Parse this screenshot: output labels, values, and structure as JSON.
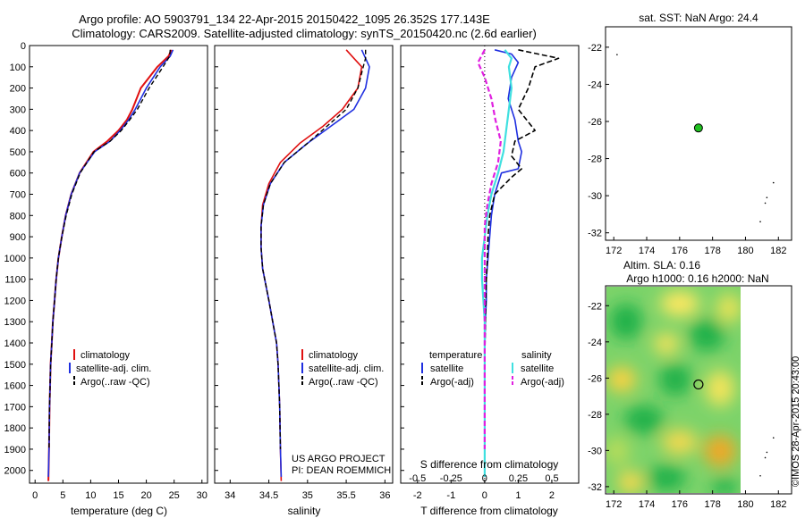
{
  "header": {
    "line1": "Argo profile: AO 5903791_134 22-Apr-2015 20150422_1095 26.352S 177.143E",
    "line2": "Climatology: CARS2009. Satellite-adjusted climatology: synTS_20150420.nc (2.6d earlier)"
  },
  "credit": {
    "project": "US ARGO PROJECT",
    "pi": "PI: DEAN ROEMMICH",
    "imos": "©IMOS 28-Apr-2015 20:43:00"
  },
  "colors": {
    "climatology": "#e01010",
    "satellite": "#1f2fe0",
    "argo": "#000000",
    "salinity_sat": "#40e0e0",
    "salinity_argo": "#e020e0",
    "marker": "#20c020"
  },
  "panels": {
    "temperature": {
      "xlabel": "temperature (deg C)",
      "xlim": [
        -1,
        31
      ],
      "xticks": [
        0,
        5,
        10,
        15,
        20,
        25,
        30
      ],
      "legend": [
        "climatology",
        "satellite-adj. clim.",
        "Argo(..raw -QC)"
      ]
    },
    "salinity": {
      "xlabel": "salinity",
      "xlim": [
        33.8,
        36.1
      ],
      "xticks": [
        34,
        34.5,
        35,
        35.5,
        36
      ],
      "legend": [
        "climatology",
        "satellite-adj. clim.",
        "Argo(..raw -QC)"
      ]
    },
    "difference": {
      "xlabel_bottom": "T difference from climatology",
      "xlabel_top": "S difference from climatology",
      "xlim": [
        -2.5,
        2.8
      ],
      "xticks_bottom": [
        -2,
        -1,
        0,
        1,
        2
      ],
      "xticks_top": [
        -0.5,
        -0.25,
        0,
        0.25,
        0.5
      ],
      "legend_temp_title": "temperature",
      "legend_sal_title": "salinity",
      "legend_temp": [
        "satellite",
        "Argo(-adj)"
      ],
      "legend_sal": [
        "satellite",
        "Argo(-adj)"
      ]
    },
    "map_sst": {
      "title": "sat. SST: NaN Argo: 24.4",
      "xlim": [
        171.5,
        182.8
      ],
      "ylim": [
        -32.4,
        -20.9
      ],
      "xticks": [
        172,
        174,
        176,
        178,
        180,
        182
      ],
      "yticks": [
        -22,
        -24,
        -26,
        -28,
        -30,
        -32
      ],
      "profile_lon": 177.143,
      "profile_lat": -26.352
    },
    "map_sla": {
      "title1": "Altim. SLA: 0.16",
      "title2": "Argo h1000: 0.16 h2000: NaN",
      "xlim": [
        171.5,
        182.8
      ],
      "ylim": [
        -32.4,
        -20.9
      ],
      "xticks": [
        172,
        174,
        176,
        178,
        180,
        182
      ],
      "yticks": [
        -22,
        -24,
        -26,
        -28,
        -30,
        -32
      ],
      "profile_lon": 177.143,
      "profile_lat": -26.352
    }
  },
  "chart_data": [
    {
      "type": "line",
      "name": "temperature-profile",
      "xlabel": "temperature (deg C)",
      "ylabel": "",
      "ylim": [
        2060,
        0
      ],
      "yticks": [
        0,
        100,
        200,
        300,
        400,
        500,
        600,
        700,
        800,
        900,
        1000,
        1100,
        1200,
        1300,
        1400,
        1500,
        1600,
        1700,
        1800,
        1900,
        2000
      ],
      "series": [
        {
          "name": "climatology",
          "x": [
            24.5,
            24.0,
            22.0,
            19.0,
            17.5,
            16.5,
            15.0,
            13.0,
            10.5,
            8.0,
            6.5,
            5.5,
            4.8,
            4.2,
            3.8,
            3.5,
            3.2,
            3.0,
            2.8,
            2.6,
            2.5,
            2.4
          ],
          "y": [
            20,
            50,
            100,
            200,
            300,
            350,
            400,
            450,
            500,
            600,
            700,
            800,
            900,
            1000,
            1100,
            1200,
            1300,
            1400,
            1500,
            1700,
            1900,
            2050
          ]
        },
        {
          "name": "satellite-adj. clim.",
          "x": [
            24.8,
            24.3,
            22.5,
            20.0,
            18.0,
            16.8,
            15.3,
            13.5,
            10.7,
            8.0,
            6.5,
            5.5,
            4.8,
            4.2,
            3.8,
            3.5,
            3.2,
            3.0,
            2.8,
            2.6,
            2.5,
            2.4
          ],
          "y": [
            20,
            50,
            100,
            200,
            300,
            350,
            400,
            450,
            500,
            600,
            700,
            800,
            900,
            1000,
            1100,
            1200,
            1300,
            1400,
            1500,
            1700,
            1900,
            2030
          ]
        },
        {
          "name": "Argo(..raw -QC)",
          "x": [
            24.3,
            24.2,
            23.0,
            20.5,
            18.4,
            17.0,
            15.5,
            13.5,
            10.6,
            8.1,
            6.6,
            5.6,
            4.8,
            4.2,
            3.8,
            3.5,
            3.2,
            3.0,
            2.8,
            2.6,
            2.5
          ],
          "y": [
            20,
            50,
            100,
            200,
            300,
            350,
            400,
            450,
            500,
            600,
            700,
            800,
            900,
            1000,
            1100,
            1200,
            1300,
            1400,
            1500,
            1700,
            1900
          ]
        }
      ]
    },
    {
      "type": "line",
      "name": "salinity-profile",
      "xlabel": "salinity",
      "ylim": [
        2060,
        0
      ],
      "series": [
        {
          "name": "climatology",
          "x": [
            35.5,
            35.6,
            35.7,
            35.65,
            35.45,
            35.2,
            34.9,
            34.65,
            34.5,
            34.42,
            34.4,
            34.4,
            34.42,
            34.5,
            34.55,
            34.6,
            34.62,
            34.63,
            34.64,
            34.65,
            34.66
          ],
          "y": [
            20,
            60,
            100,
            200,
            300,
            380,
            460,
            550,
            650,
            750,
            850,
            950,
            1050,
            1200,
            1300,
            1400,
            1500,
            1600,
            1700,
            1900,
            2050
          ]
        },
        {
          "name": "satellite-adj. clim.",
          "x": [
            35.7,
            35.75,
            35.8,
            35.75,
            35.6,
            35.3,
            35.0,
            34.7,
            34.52,
            34.43,
            34.4,
            34.4,
            34.42,
            34.5,
            34.55,
            34.6,
            34.62,
            34.63,
            34.64,
            34.65,
            34.66
          ],
          "y": [
            20,
            60,
            100,
            200,
            300,
            380,
            460,
            550,
            650,
            750,
            850,
            950,
            1050,
            1200,
            1300,
            1400,
            1500,
            1600,
            1700,
            1900,
            2030
          ]
        },
        {
          "name": "Argo(..raw -QC)",
          "x": [
            35.75,
            35.75,
            35.72,
            35.65,
            35.5,
            35.25,
            35.0,
            34.7,
            34.52,
            34.43,
            34.4,
            34.4,
            34.42,
            34.5,
            34.55,
            34.6,
            34.62,
            34.63,
            34.64,
            34.65
          ],
          "y": [
            20,
            60,
            100,
            200,
            300,
            380,
            460,
            550,
            650,
            750,
            850,
            950,
            1050,
            1200,
            1300,
            1400,
            1500,
            1600,
            1700,
            1900
          ]
        }
      ]
    },
    {
      "type": "line",
      "name": "difference-profile",
      "xlabel": "T difference from climatology",
      "ylim": [
        2060,
        0
      ],
      "series": [
        {
          "name": "temperature satellite",
          "axis": "T",
          "x": [
            0.3,
            0.8,
            1.0,
            0.8,
            0.7,
            0.9,
            1.0,
            1.1,
            1.0,
            0.5,
            0.3,
            0.2,
            0.15,
            0.1,
            0.05,
            0.05,
            0.02,
            0.0,
            0.0,
            0.0,
            0.0
          ],
          "y": [
            20,
            40,
            80,
            150,
            250,
            350,
            450,
            500,
            580,
            600,
            700,
            800,
            900,
            1000,
            1100,
            1200,
            1300,
            1500,
            1700,
            1900,
            2030
          ]
        },
        {
          "name": "temperature Argo(-adj)",
          "axis": "T",
          "x": [
            1.0,
            2.2,
            1.5,
            1.3,
            1.0,
            1.5,
            0.9,
            0.8,
            1.1,
            0.8,
            0.3,
            0.15,
            0.1,
            0.08,
            0.05,
            0.03,
            0.02,
            0.0,
            0.0,
            0.0
          ],
          "y": [
            20,
            60,
            100,
            200,
            300,
            400,
            450,
            520,
            580,
            620,
            700,
            800,
            900,
            1000,
            1100,
            1200,
            1300,
            1500,
            1700,
            1900
          ]
        },
        {
          "name": "salinity satellite",
          "axis": "S",
          "x": [
            0.15,
            0.2,
            0.18,
            0.2,
            0.18,
            0.16,
            0.14,
            0.1,
            0.05,
            0.02,
            0.0,
            -0.02,
            -0.02,
            0.0,
            0.0,
            0.0,
            0.0,
            0.0
          ],
          "y": [
            20,
            60,
            100,
            200,
            300,
            400,
            500,
            600,
            700,
            800,
            900,
            1000,
            1100,
            1300,
            1500,
            1700,
            1900,
            2030
          ]
        },
        {
          "name": "salinity Argo(-adj)",
          "axis": "S",
          "x": [
            0.0,
            -0.05,
            0.0,
            0.05,
            0.08,
            0.12,
            0.1,
            0.05,
            0.02,
            0.0,
            0.0,
            0.0,
            0.0,
            0.0,
            0.0,
            0.0
          ],
          "y": [
            20,
            80,
            150,
            250,
            350,
            450,
            550,
            650,
            750,
            850,
            1000,
            1200,
            1400,
            1600,
            1800,
            1900
          ]
        }
      ]
    },
    {
      "type": "scatter",
      "name": "sst-map",
      "title": "sat. SST: NaN Argo: 24.4",
      "x": [
        177.143
      ],
      "y": [
        -26.352
      ]
    },
    {
      "type": "heatmap",
      "name": "sla-map",
      "title": "Altim. SLA: 0.16",
      "x": [
        177.143
      ],
      "y": [
        -26.352
      ]
    }
  ]
}
